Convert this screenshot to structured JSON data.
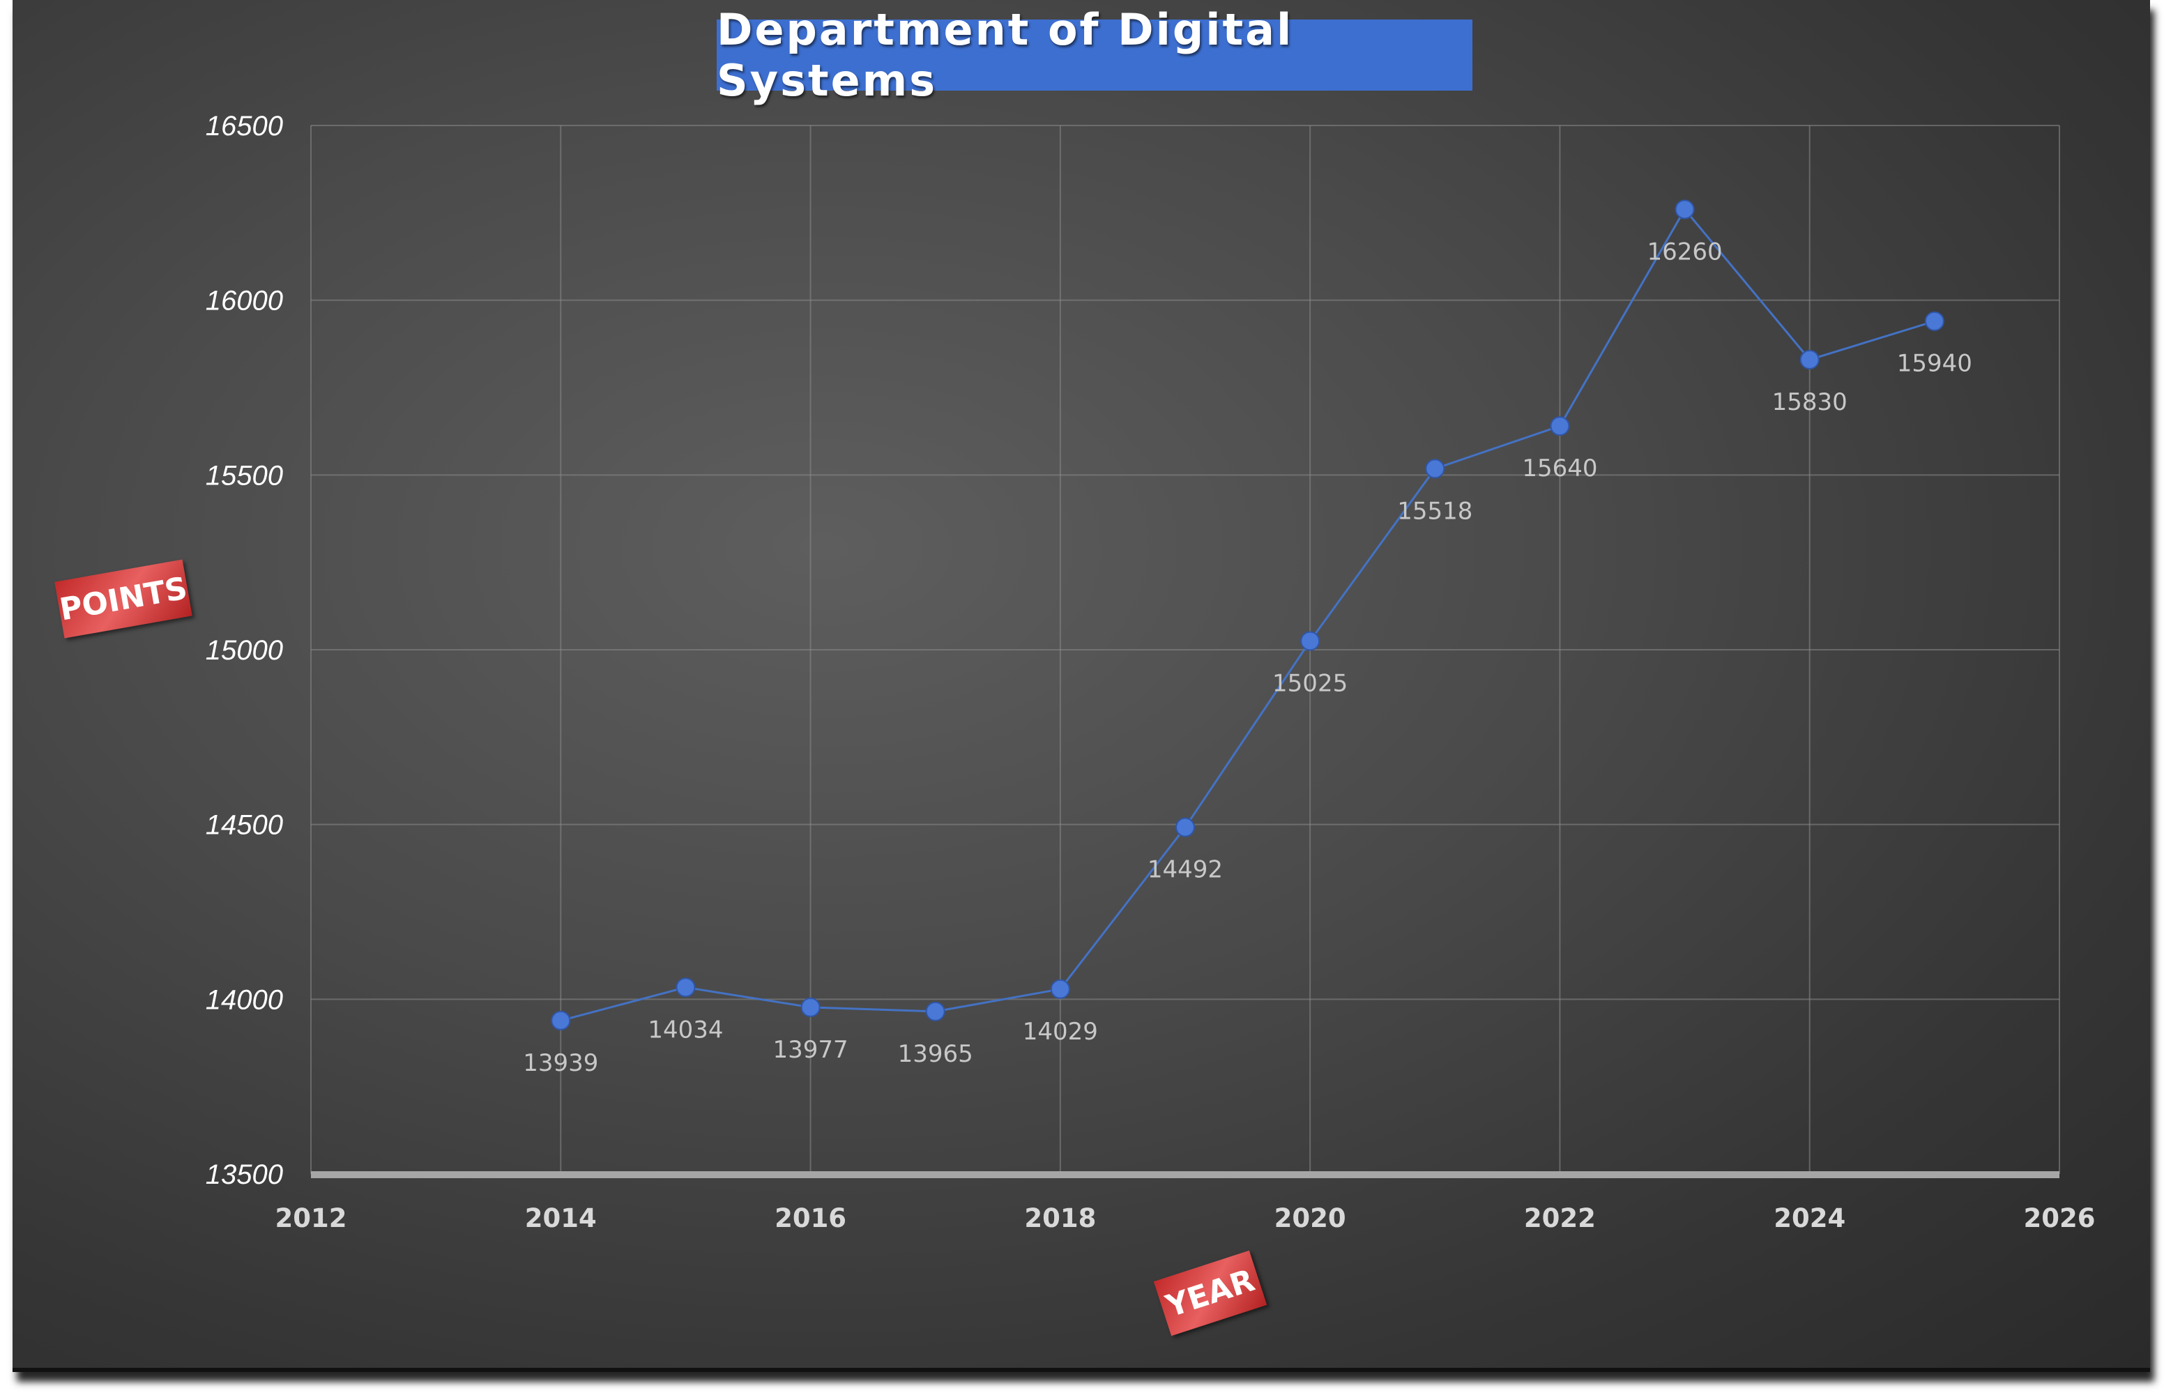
{
  "chart_data": {
    "type": "line",
    "title": "Department of Digital Systems",
    "xlabel": "YEAR",
    "ylabel": "POINTS",
    "xlim": [
      2012,
      2026
    ],
    "ylim": [
      13500,
      16500
    ],
    "x_ticks": [
      "2012",
      "2014",
      "2016",
      "2018",
      "2020",
      "2022",
      "2024",
      "2026"
    ],
    "y_ticks": [
      "13500",
      "14000",
      "14500",
      "15000",
      "15500",
      "16000",
      "16500"
    ],
    "grid": true,
    "legend": "none",
    "series": [
      {
        "x": [
          2014,
          2015,
          2016,
          2017,
          2018,
          2019,
          2020,
          2021,
          2022,
          2023,
          2024,
          2025
        ],
        "values": [
          13939,
          14034,
          13977,
          13965,
          14029,
          14492,
          15025,
          15518,
          15640,
          16260,
          15830,
          15940
        ],
        "color": "#4472c4"
      }
    ]
  },
  "colors": {
    "title_bg": "#3d6fd0",
    "line": "#4472c4",
    "marker": "#4a78d6",
    "axis_tag": "#d23b3b"
  }
}
